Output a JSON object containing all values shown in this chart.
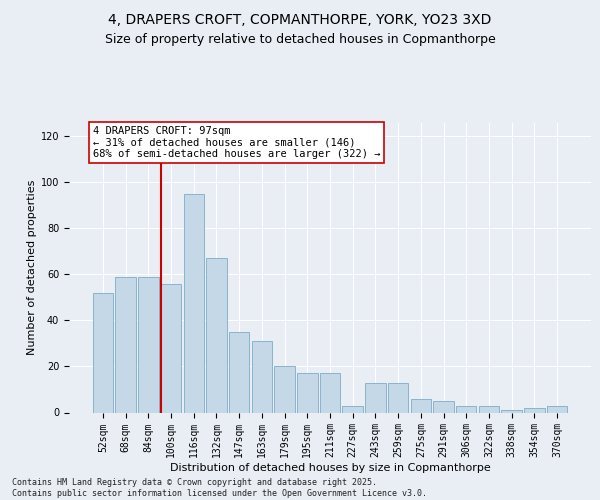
{
  "title1": "4, DRAPERS CROFT, COPMANTHORPE, YORK, YO23 3XD",
  "title2": "Size of property relative to detached houses in Copmanthorpe",
  "xlabel": "Distribution of detached houses by size in Copmanthorpe",
  "ylabel": "Number of detached properties",
  "categories": [
    "52sqm",
    "68sqm",
    "84sqm",
    "100sqm",
    "116sqm",
    "132sqm",
    "147sqm",
    "163sqm",
    "179sqm",
    "195sqm",
    "211sqm",
    "227sqm",
    "243sqm",
    "259sqm",
    "275sqm",
    "291sqm",
    "306sqm",
    "322sqm",
    "338sqm",
    "354sqm",
    "370sqm"
  ],
  "values": [
    52,
    59,
    59,
    56,
    95,
    67,
    35,
    31,
    20,
    17,
    17,
    3,
    13,
    13,
    6,
    5,
    3,
    3,
    1,
    2,
    3
  ],
  "bar_color": "#c5d8e8",
  "bar_edgecolor": "#8ab4cc",
  "vline_index": 3,
  "vline_color": "#cc0000",
  "annotation_text": "4 DRAPERS CROFT: 97sqm\n← 31% of detached houses are smaller (146)\n68% of semi-detached houses are larger (322) →",
  "annotation_box_facecolor": "white",
  "annotation_box_edgecolor": "#cc0000",
  "ylim": [
    0,
    126
  ],
  "yticks": [
    0,
    20,
    40,
    60,
    80,
    100,
    120
  ],
  "bg_color": "#e8eef4",
  "footer1": "Contains HM Land Registry data © Crown copyright and database right 2025.",
  "footer2": "Contains public sector information licensed under the Open Government Licence v3.0.",
  "title1_fontsize": 10,
  "title2_fontsize": 9,
  "ylabel_fontsize": 8,
  "xlabel_fontsize": 8,
  "tick_fontsize": 7,
  "annot_fontsize": 7.5,
  "footer_fontsize": 6
}
